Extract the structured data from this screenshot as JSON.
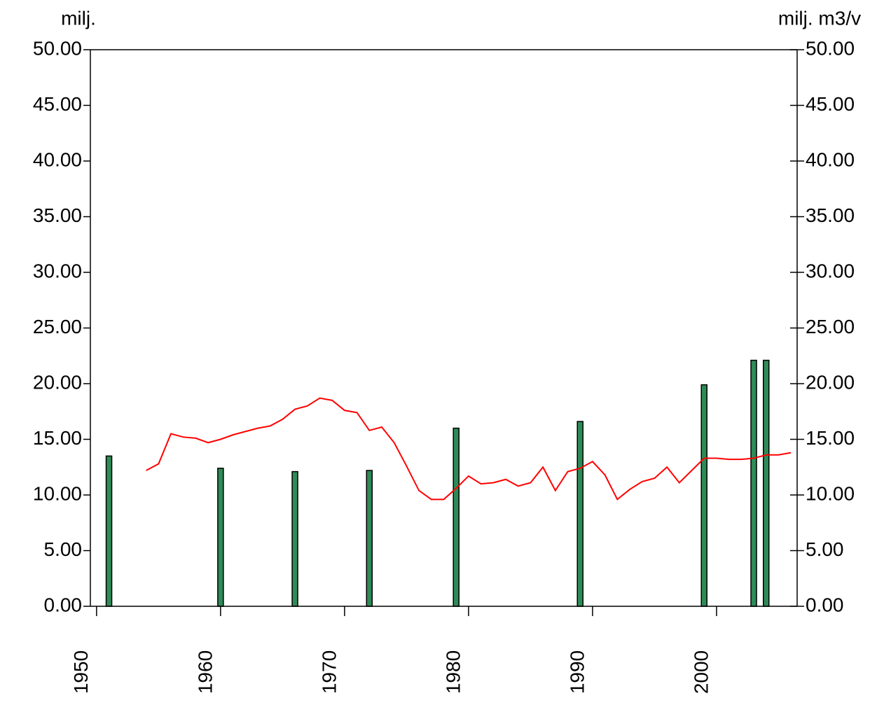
{
  "chart_data": {
    "type": "bar_line",
    "y_label": "milj.",
    "y2_label": "milj. m3/v",
    "xlim": [
      1949.5,
      2006.5
    ],
    "xticks": [
      1950,
      1960,
      1970,
      1980,
      1990,
      2000
    ],
    "ylim": [
      0,
      50
    ],
    "yticks": [
      {
        "value": 0,
        "label": "0.00"
      },
      {
        "value": 5,
        "label": "5.00"
      },
      {
        "value": 10,
        "label": "10.00"
      },
      {
        "value": 15,
        "label": "15.00"
      },
      {
        "value": 20,
        "label": "20.00"
      },
      {
        "value": 25,
        "label": "25.00"
      },
      {
        "value": 30,
        "label": "30.00"
      },
      {
        "value": 35,
        "label": "35.00"
      },
      {
        "value": 40,
        "label": "40.00"
      },
      {
        "value": 45,
        "label": "45.00"
      },
      {
        "value": 50,
        "label": "50.00"
      }
    ],
    "y2lim": [
      0,
      50
    ],
    "y2ticks": [
      {
        "value": 0,
        "label": "0.00"
      },
      {
        "value": 5,
        "label": "5.00"
      },
      {
        "value": 10,
        "label": "10.00"
      },
      {
        "value": 15,
        "label": "15.00"
      },
      {
        "value": 20,
        "label": "20.00"
      },
      {
        "value": 25,
        "label": "25.00"
      },
      {
        "value": 30,
        "label": "30.00"
      },
      {
        "value": 35,
        "label": "35.00"
      },
      {
        "value": 40,
        "label": "40.00"
      },
      {
        "value": 45,
        "label": "45.00"
      },
      {
        "value": 50,
        "label": "50.00"
      }
    ],
    "series": [
      {
        "type": "bar",
        "color": "#2e8b57",
        "x": [
          1951,
          1960,
          1966,
          1972,
          1979,
          1989,
          1999,
          2003,
          2004
        ],
        "values": [
          13.5,
          12.4,
          12.1,
          12.2,
          16.0,
          16.6,
          19.9,
          22.1,
          22.1
        ]
      },
      {
        "type": "line",
        "color": "#ff0000",
        "axis": "y2",
        "x": [
          1954,
          1955,
          1956,
          1957,
          1958,
          1959,
          1960,
          1961,
          1962,
          1963,
          1964,
          1965,
          1966,
          1967,
          1968,
          1969,
          1970,
          1971,
          1972,
          1973,
          1974,
          1975,
          1976,
          1977,
          1978,
          1979,
          1980,
          1981,
          1982,
          1983,
          1984,
          1985,
          1986,
          1987,
          1988,
          1989,
          1990,
          1991,
          1992,
          1993,
          1994,
          1995,
          1996,
          1997,
          1998,
          1999,
          2000,
          2001,
          2002,
          2003,
          2004,
          2005,
          2006
        ],
        "values": [
          12.2,
          12.8,
          15.5,
          15.2,
          15.1,
          14.7,
          15.0,
          15.4,
          15.7,
          16.0,
          16.2,
          16.8,
          17.7,
          18.0,
          18.7,
          18.5,
          17.6,
          17.4,
          15.8,
          16.1,
          14.7,
          12.6,
          10.4,
          9.6,
          9.6,
          10.6,
          11.7,
          11.0,
          11.1,
          11.4,
          10.8,
          11.1,
          12.5,
          10.4,
          12.1,
          12.4,
          13.0,
          11.8,
          9.6,
          10.5,
          11.2,
          11.5,
          12.5,
          11.1,
          12.2,
          13.3,
          13.3,
          13.2,
          13.2,
          13.3,
          13.6,
          13.6,
          13.8
        ]
      }
    ]
  }
}
